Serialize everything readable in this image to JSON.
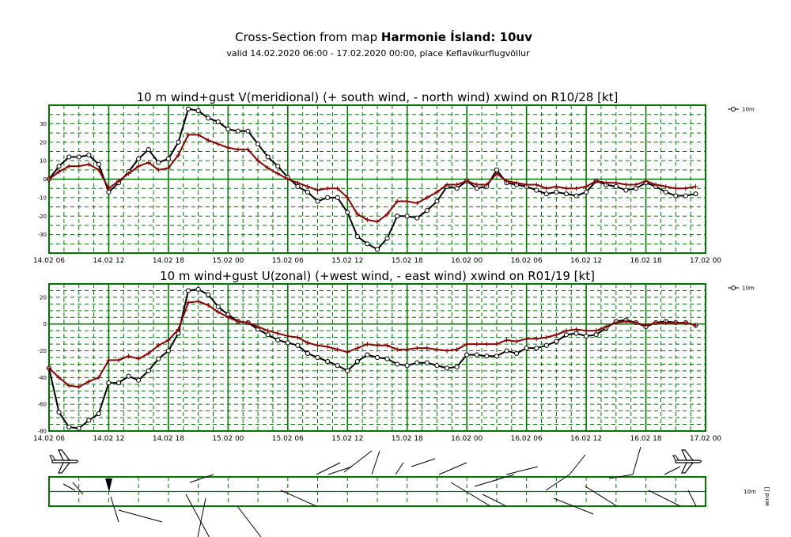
{
  "header": {
    "title_prefix": "Cross-Section from map ",
    "title_bold": "Harmonie Ísland: 10uv",
    "subtitle": "valid 14.02.2020 06:00 - 17.02.2020 00:00, place Keflavíkurflugvöllur"
  },
  "colors": {
    "grid": "#007700",
    "series_10m": "#000000",
    "series_gust": "#8b0000",
    "zero_line": "#007700"
  },
  "icons": {
    "left": "airplane-icon",
    "right": "airplane-icon"
  },
  "chart_data": [
    {
      "type": "line",
      "title": "10 m wind+gust V(meridional) (+ south wind, - north wind) xwind on R10/28 [kt]",
      "x_tick_labels": [
        "14.02 06",
        "14.02 12",
        "14.02 18",
        "15.02 00",
        "15.02 06",
        "15.02 12",
        "15.02 18",
        "16.02 00",
        "16.02 06",
        "16.02 12",
        "16.02 18",
        "17.02 00"
      ],
      "x_range_hours": [
        0,
        66
      ],
      "ylim": [
        -40,
        40
      ],
      "yticks": [
        -30,
        -20,
        -10,
        0,
        10,
        20,
        30
      ],
      "legend": {
        "label": "10m",
        "placement": "top-right"
      },
      "series": [
        {
          "name": "10m",
          "values": [
            [
              0,
              0
            ],
            [
              1,
              7
            ],
            [
              2,
              12
            ],
            [
              3,
              12
            ],
            [
              4,
              13
            ],
            [
              5,
              8
            ],
            [
              6,
              -7
            ],
            [
              7,
              -2
            ],
            [
              8,
              4
            ],
            [
              9,
              11
            ],
            [
              10,
              16
            ],
            [
              11,
              9
            ],
            [
              12,
              11
            ],
            [
              13,
              20
            ],
            [
              14,
              38
            ],
            [
              15,
              37
            ],
            [
              16,
              33
            ],
            [
              17,
              31
            ],
            [
              18,
              27
            ],
            [
              19,
              26
            ],
            [
              20,
              26
            ],
            [
              21,
              19
            ],
            [
              22,
              12
            ],
            [
              23,
              7
            ],
            [
              24,
              1
            ],
            [
              25,
              -4
            ],
            [
              26,
              -7
            ],
            [
              27,
              -12
            ],
            [
              28,
              -10
            ],
            [
              29,
              -10
            ],
            [
              30,
              -18
            ],
            [
              31,
              -31
            ],
            [
              32,
              -35
            ],
            [
              33,
              -38
            ],
            [
              34,
              -32
            ],
            [
              35,
              -20
            ],
            [
              36,
              -20
            ],
            [
              37,
              -21
            ],
            [
              38,
              -17
            ],
            [
              39,
              -12
            ],
            [
              40,
              -4
            ],
            [
              41,
              -5
            ],
            [
              42,
              -1
            ],
            [
              43,
              -5
            ],
            [
              44,
              -4
            ],
            [
              45,
              5
            ],
            [
              46,
              -2
            ],
            [
              47,
              -3
            ],
            [
              48,
              -4
            ],
            [
              49,
              -6
            ],
            [
              50,
              -8
            ],
            [
              51,
              -7
            ],
            [
              52,
              -8
            ],
            [
              53,
              -9
            ],
            [
              54,
              -7
            ],
            [
              55,
              -1
            ],
            [
              56,
              -3
            ],
            [
              57,
              -4
            ],
            [
              58,
              -6
            ],
            [
              59,
              -5
            ],
            [
              60,
              -2
            ],
            [
              61,
              -4
            ],
            [
              62,
              -7
            ],
            [
              63,
              -9
            ],
            [
              64,
              -9
            ],
            [
              65,
              -8
            ]
          ]
        },
        {
          "values": [
            [
              0,
              0
            ],
            [
              1,
              4
            ],
            [
              2,
              7
            ],
            [
              3,
              7
            ],
            [
              4,
              8
            ],
            [
              5,
              5
            ],
            [
              6,
              -5
            ],
            [
              7,
              -1
            ],
            [
              8,
              3
            ],
            [
              9,
              7
            ],
            [
              10,
              9
            ],
            [
              11,
              5
            ],
            [
              12,
              6
            ],
            [
              13,
              13
            ],
            [
              14,
              24
            ],
            [
              15,
              24
            ],
            [
              16,
              21
            ],
            [
              17,
              19
            ],
            [
              18,
              17
            ],
            [
              19,
              16
            ],
            [
              20,
              16
            ],
            [
              21,
              10
            ],
            [
              22,
              6
            ],
            [
              23,
              3
            ],
            [
              24,
              0
            ],
            [
              25,
              -2
            ],
            [
              26,
              -4
            ],
            [
              27,
              -6
            ],
            [
              28,
              -5
            ],
            [
              29,
              -5
            ],
            [
              30,
              -10
            ],
            [
              31,
              -19
            ],
            [
              32,
              -22
            ],
            [
              33,
              -23
            ],
            [
              34,
              -19
            ],
            [
              35,
              -12
            ],
            [
              36,
              -12
            ],
            [
              37,
              -13
            ],
            [
              38,
              -10
            ],
            [
              39,
              -7
            ],
            [
              40,
              -3
            ],
            [
              41,
              -3
            ],
            [
              42,
              -1
            ],
            [
              43,
              -3
            ],
            [
              44,
              -3
            ],
            [
              45,
              3
            ],
            [
              46,
              -1
            ],
            [
              47,
              -2
            ],
            [
              48,
              -3
            ],
            [
              49,
              -3
            ],
            [
              50,
              -5
            ],
            [
              51,
              -4
            ],
            [
              52,
              -5
            ],
            [
              53,
              -5
            ],
            [
              54,
              -4
            ],
            [
              55,
              -1
            ],
            [
              56,
              -2
            ],
            [
              57,
              -2
            ],
            [
              58,
              -3
            ],
            [
              59,
              -3
            ],
            [
              60,
              -1
            ],
            [
              61,
              -3
            ],
            [
              62,
              -4
            ],
            [
              63,
              -5
            ],
            [
              64,
              -5
            ],
            [
              65,
              -4
            ]
          ]
        }
      ]
    },
    {
      "type": "line",
      "title": "10 m wind+gust U(zonal) (+west wind, - east wind) xwind on R01/19 [kt]",
      "x_tick_labels": [
        "14.02 06",
        "14.02 12",
        "14.02 18",
        "15.02 00",
        "15.02 06",
        "15.02 12",
        "15.02 18",
        "16.02 00",
        "16.02 06",
        "16.02 12",
        "16.02 18",
        "17.02 00"
      ],
      "x_range_hours": [
        0,
        66
      ],
      "ylim": [
        -80,
        30
      ],
      "yticks": [
        -80,
        -60,
        -40,
        -20,
        0,
        20
      ],
      "legend": {
        "label": "10m",
        "placement": "top-right"
      },
      "series": [
        {
          "name": "10m",
          "values": [
            [
              0,
              -33
            ],
            [
              1,
              -66
            ],
            [
              2,
              -77
            ],
            [
              3,
              -78
            ],
            [
              4,
              -72
            ],
            [
              5,
              -67
            ],
            [
              6,
              -44
            ],
            [
              7,
              -44
            ],
            [
              8,
              -39
            ],
            [
              9,
              -42
            ],
            [
              10,
              -35
            ],
            [
              11,
              -26
            ],
            [
              12,
              -20
            ],
            [
              13,
              -7
            ],
            [
              14,
              25
            ],
            [
              15,
              26
            ],
            [
              16,
              22
            ],
            [
              17,
              13
            ],
            [
              18,
              7
            ],
            [
              19,
              2
            ],
            [
              20,
              1
            ],
            [
              21,
              -4
            ],
            [
              22,
              -8
            ],
            [
              23,
              -12
            ],
            [
              24,
              -14
            ],
            [
              25,
              -16
            ],
            [
              26,
              -22
            ],
            [
              27,
              -25
            ],
            [
              28,
              -28
            ],
            [
              29,
              -31
            ],
            [
              30,
              -35
            ],
            [
              31,
              -28
            ],
            [
              32,
              -23
            ],
            [
              33,
              -25
            ],
            [
              34,
              -26
            ],
            [
              35,
              -30
            ],
            [
              36,
              -31
            ],
            [
              37,
              -29
            ],
            [
              38,
              -29
            ],
            [
              39,
              -31
            ],
            [
              40,
              -33
            ],
            [
              41,
              -32
            ],
            [
              42,
              -23
            ],
            [
              43,
              -23
            ],
            [
              44,
              -24
            ],
            [
              45,
              -24
            ],
            [
              46,
              -20
            ],
            [
              47,
              -22
            ],
            [
              48,
              -18
            ],
            [
              49,
              -18
            ],
            [
              50,
              -16
            ],
            [
              51,
              -13
            ],
            [
              52,
              -8
            ],
            [
              53,
              -7
            ],
            [
              54,
              -9
            ],
            [
              55,
              -8
            ],
            [
              56,
              -3
            ],
            [
              57,
              2
            ],
            [
              58,
              3
            ],
            [
              59,
              1
            ],
            [
              60,
              -2
            ],
            [
              61,
              1
            ],
            [
              62,
              2
            ],
            [
              63,
              1
            ],
            [
              64,
              1
            ],
            [
              65,
              -1
            ]
          ]
        },
        {
          "values": [
            [
              0,
              -33
            ],
            [
              1,
              -40
            ],
            [
              2,
              -46
            ],
            [
              3,
              -47
            ],
            [
              4,
              -43
            ],
            [
              5,
              -40
            ],
            [
              6,
              -27
            ],
            [
              7,
              -27
            ],
            [
              8,
              -24
            ],
            [
              9,
              -26
            ],
            [
              10,
              -22
            ],
            [
              11,
              -16
            ],
            [
              12,
              -12
            ],
            [
              13,
              -4
            ],
            [
              14,
              16
            ],
            [
              15,
              17
            ],
            [
              16,
              14
            ],
            [
              17,
              9
            ],
            [
              18,
              5
            ],
            [
              19,
              2
            ],
            [
              20,
              1
            ],
            [
              21,
              -2
            ],
            [
              22,
              -5
            ],
            [
              23,
              -7
            ],
            [
              24,
              -9
            ],
            [
              25,
              -10
            ],
            [
              26,
              -14
            ],
            [
              27,
              -16
            ],
            [
              28,
              -17
            ],
            [
              29,
              -19
            ],
            [
              30,
              -21
            ],
            [
              31,
              -18
            ],
            [
              32,
              -15
            ],
            [
              33,
              -16
            ],
            [
              34,
              -16
            ],
            [
              35,
              -19
            ],
            [
              36,
              -19
            ],
            [
              37,
              -18
            ],
            [
              38,
              -18
            ],
            [
              39,
              -19
            ],
            [
              40,
              -20
            ],
            [
              41,
              -19
            ],
            [
              42,
              -15
            ],
            [
              43,
              -15
            ],
            [
              44,
              -15
            ],
            [
              45,
              -15
            ],
            [
              46,
              -12
            ],
            [
              47,
              -13
            ],
            [
              48,
              -11
            ],
            [
              49,
              -11
            ],
            [
              50,
              -10
            ],
            [
              51,
              -8
            ],
            [
              52,
              -5
            ],
            [
              53,
              -4
            ],
            [
              54,
              -5
            ],
            [
              55,
              -5
            ],
            [
              56,
              -2
            ],
            [
              57,
              1
            ],
            [
              58,
              2
            ],
            [
              59,
              1
            ],
            [
              60,
              -1
            ],
            [
              61,
              1
            ],
            [
              62,
              1
            ],
            [
              63,
              1
            ],
            [
              64,
              1
            ],
            [
              65,
              -1
            ]
          ]
        }
      ]
    },
    {
      "type": "barbs",
      "legend": {
        "label": "10m",
        "placement": "right"
      },
      "axis_label": "wind []"
    }
  ]
}
